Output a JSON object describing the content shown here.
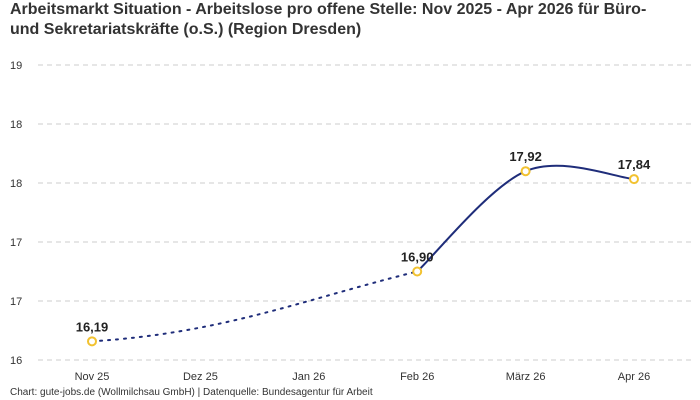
{
  "title_line1": "Arbeitsmarkt Situation - Arbeitslose pro offene Stelle: Nov 2025 - Apr 2026 für Büro-",
  "title_line2": "und Sekretariatskräfte (o.S.) (Region Dresden)",
  "footer": "Chart: gute-jobs.de (Wollmilchsau GmbH) | Datenquelle: Bundesagentur für Arbeit",
  "chart_data": {
    "type": "line",
    "categories": [
      "Nov 25",
      "Dez 25",
      "Jan 26",
      "Feb 26",
      "März 26",
      "Apr 26"
    ],
    "ytick_labels": [
      "16",
      "17",
      "17",
      "18",
      "18",
      "19"
    ],
    "ylim": [
      16.0,
      19.0
    ],
    "grid": true,
    "series": [
      {
        "values": [
          16.19,
          null,
          null,
          16.9,
          17.92,
          17.84
        ],
        "labels": [
          "16,19",
          "",
          "",
          "16,90",
          "17,92",
          "17,84"
        ]
      }
    ],
    "colors": {
      "line": "#1f2d7a",
      "marker_fill": "#ffffff",
      "marker_stroke": "#f2c230",
      "grid": "#cccccc"
    }
  }
}
